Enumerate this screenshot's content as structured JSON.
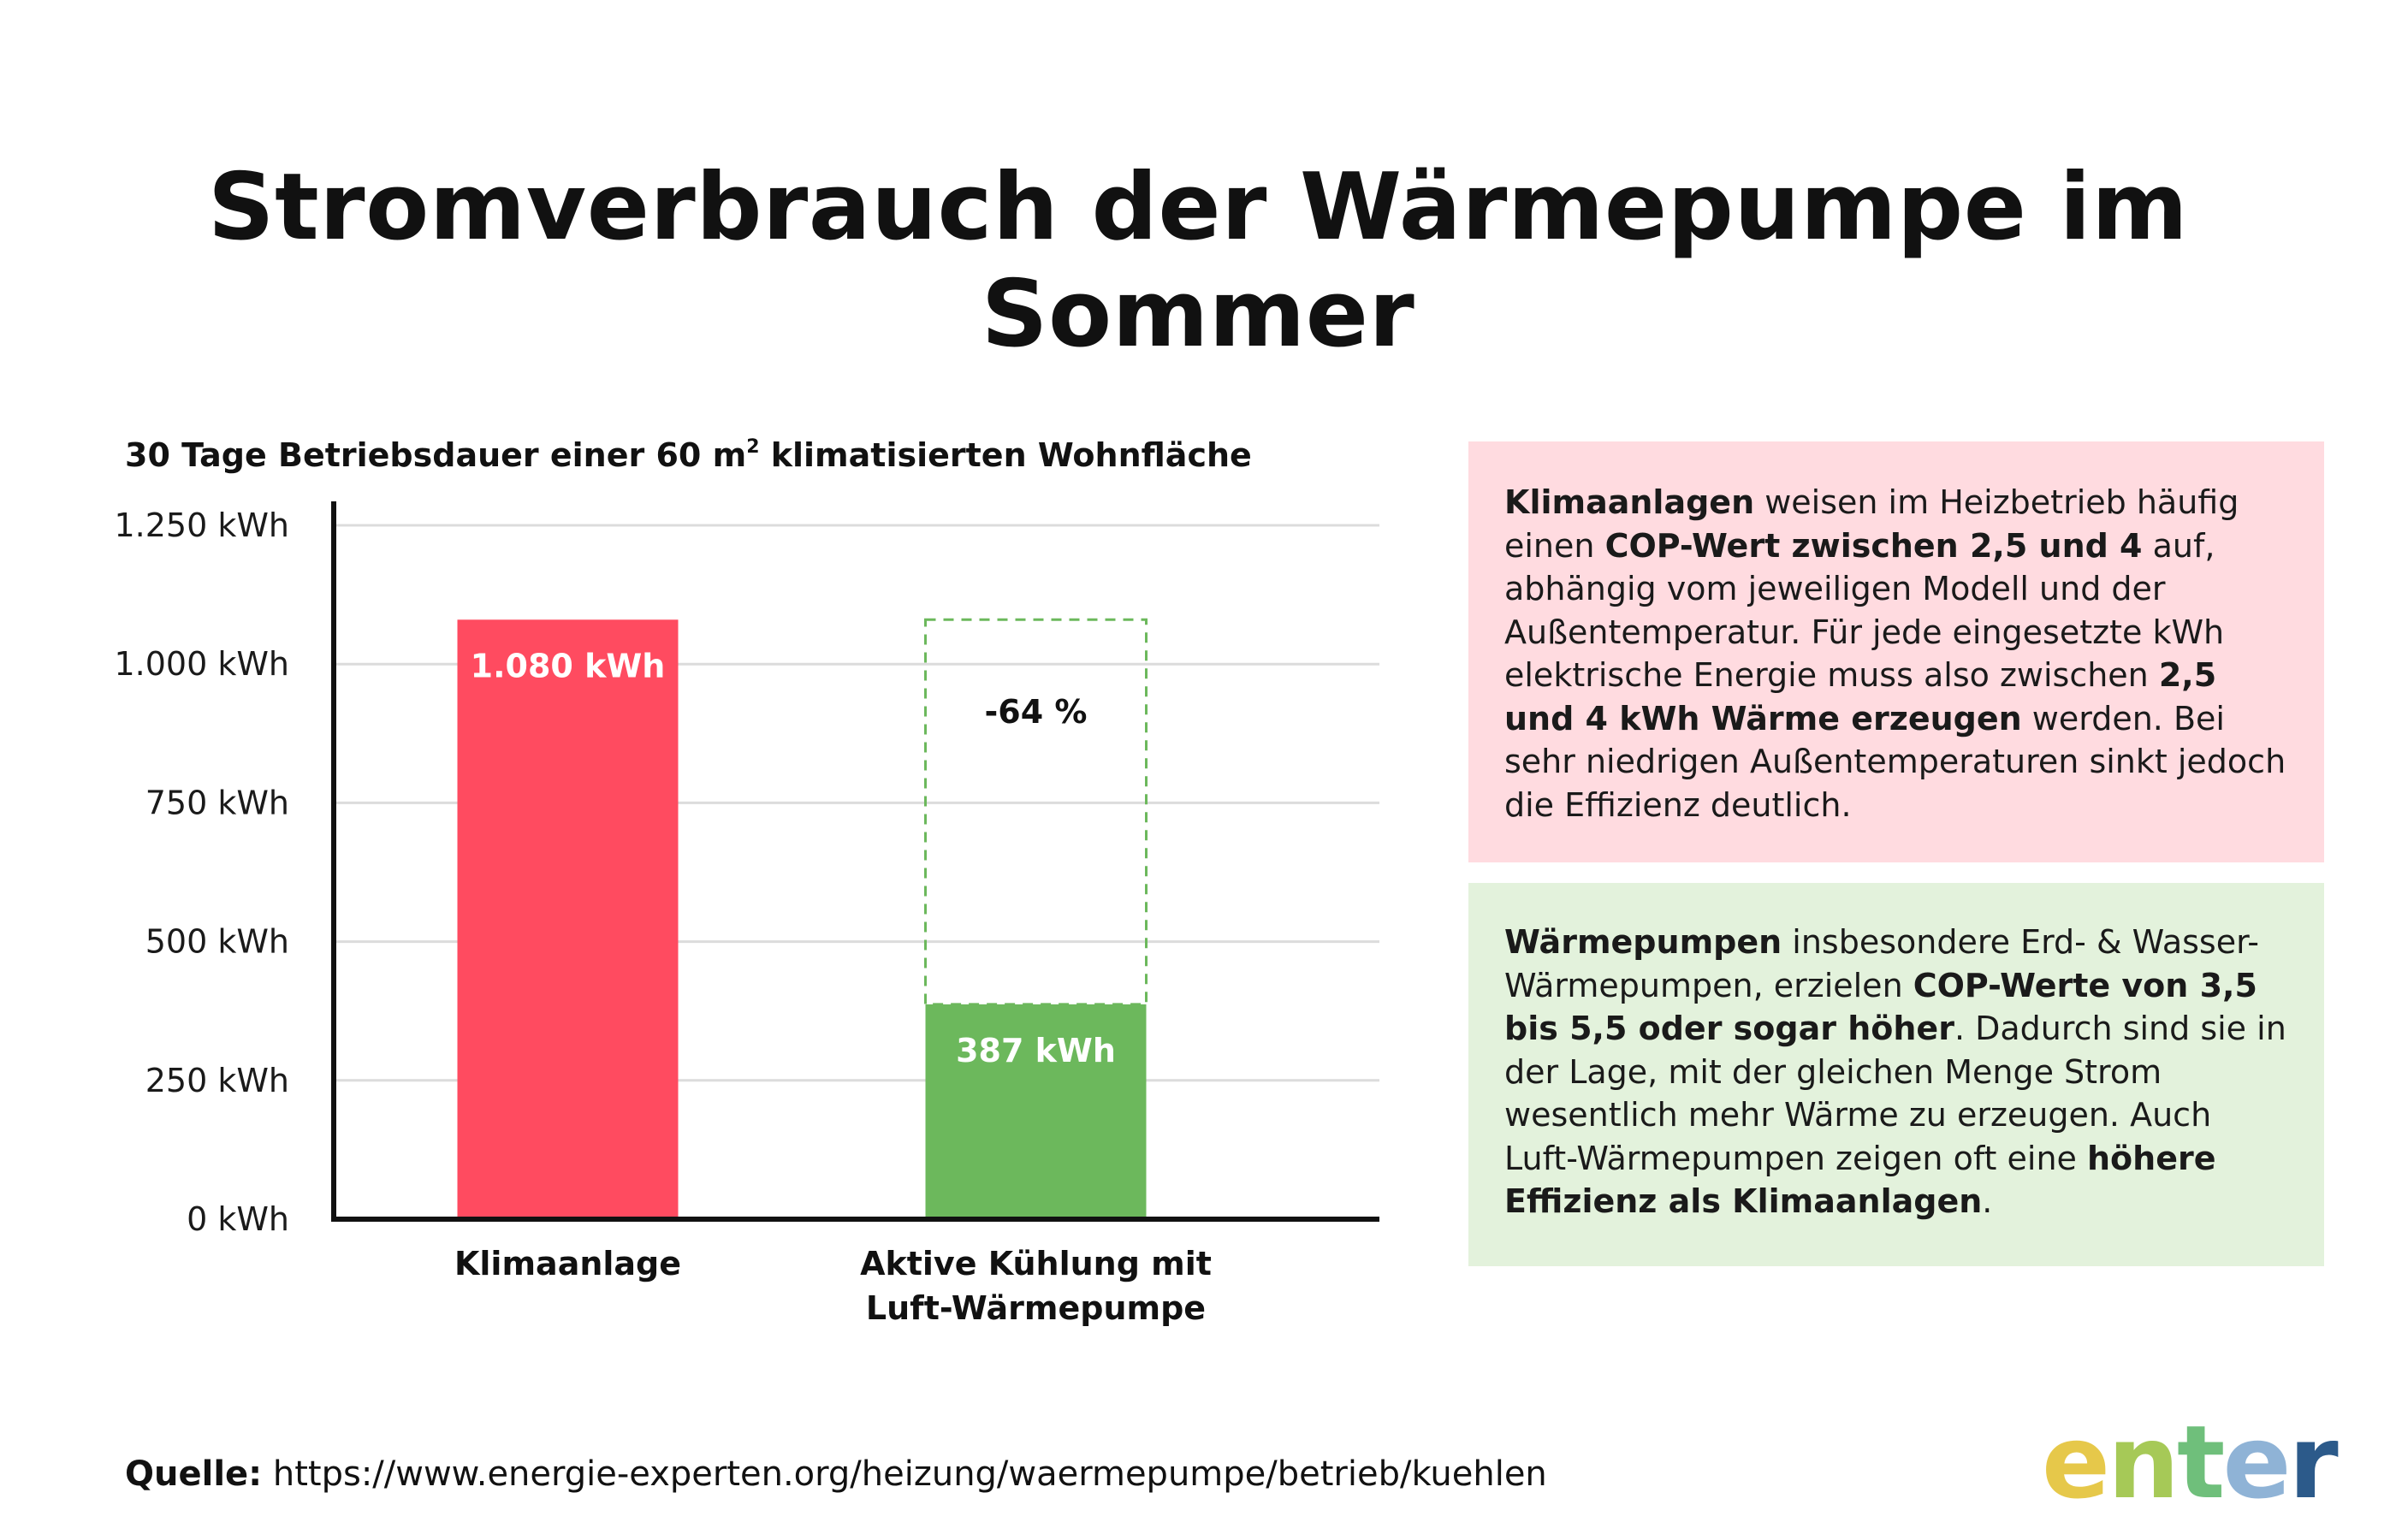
{
  "title": "Stromverbrauch der Wärmepumpe im Sommer",
  "subtitle_pre": "30 Tage Betriebsdauer einer 60 m",
  "subtitle_sup": "2",
  "subtitle_post": " klimatisierten Wohnfläche",
  "chart_data": {
    "type": "bar",
    "categories": [
      "Klimaanlage",
      "Aktive Kühlung mit Luft-Wärmepumpe"
    ],
    "category_label_lines": [
      [
        "Klimaanlage"
      ],
      [
        "Aktive Kühlung mit",
        "Luft-Wärmepumpe"
      ]
    ],
    "values": [
      1080,
      387
    ],
    "value_labels": [
      "1.080 kWh",
      "387 kWh"
    ],
    "colors": [
      "#ff4b60",
      "#6cb85c"
    ],
    "reference_outline": {
      "category": "Aktive Kühlung mit Luft-Wärmepumpe",
      "value": 1080,
      "color": "#6cb85c",
      "style": "dashed"
    },
    "annotation": "-64 %",
    "yticks": [
      0,
      250,
      500,
      750,
      1000,
      1250
    ],
    "ytick_labels": [
      "0 kWh",
      "250 kWh",
      "500 kWh",
      "750 kWh",
      "1.000 kWh",
      "1.250 kWh"
    ],
    "ylim": [
      0,
      1250
    ],
    "grid": true
  },
  "info_boxes": {
    "klima": {
      "b1": "Klimaanlagen",
      "t1": " weisen im Heizbetrieb häufig einen ",
      "b2": "COP-Wert zwischen 2,5 und 4",
      "t2": " auf, abhängig vom jeweiligen Modell und der Außentemperatur. Für jede eingesetzte kWh elektrische Energie muss also zwischen ",
      "b3": "2,5 und 4 kWh Wärme erzeugen",
      "t3": " werden. Bei sehr niedrigen Außentemperaturen sinkt jedoch die Effizienz deutlich.",
      "color": "#ffdbe0"
    },
    "wp": {
      "b1": "Wärmepumpen",
      "t1": " insbesondere Erd- & Wasser-Wärmepumpen, erzielen ",
      "b2": "COP-Werte von 3,5 bis 5,5 oder sogar höher",
      "t2": ". Dadurch sind sie in der Lage, mit der gleichen Menge Strom wesentlich mehr Wärme zu erzeugen. Auch Luft-Wärmepumpen zeigen oft eine ",
      "b3": "höhere Effizienz als Klimaanlagen",
      "t3": ".",
      "color": "#e3f2dc"
    }
  },
  "source": {
    "label": "Quelle:",
    "url": "https://www.energie-experten.org/heizung/waermepumpe/betrieb/kuehlen"
  },
  "logo": {
    "letters": [
      "e",
      "n",
      "t",
      "e",
      "r"
    ],
    "colors": [
      "#e6c84a",
      "#a6c957",
      "#6fbf7b",
      "#8fb3d6",
      "#2c5a8a"
    ]
  }
}
